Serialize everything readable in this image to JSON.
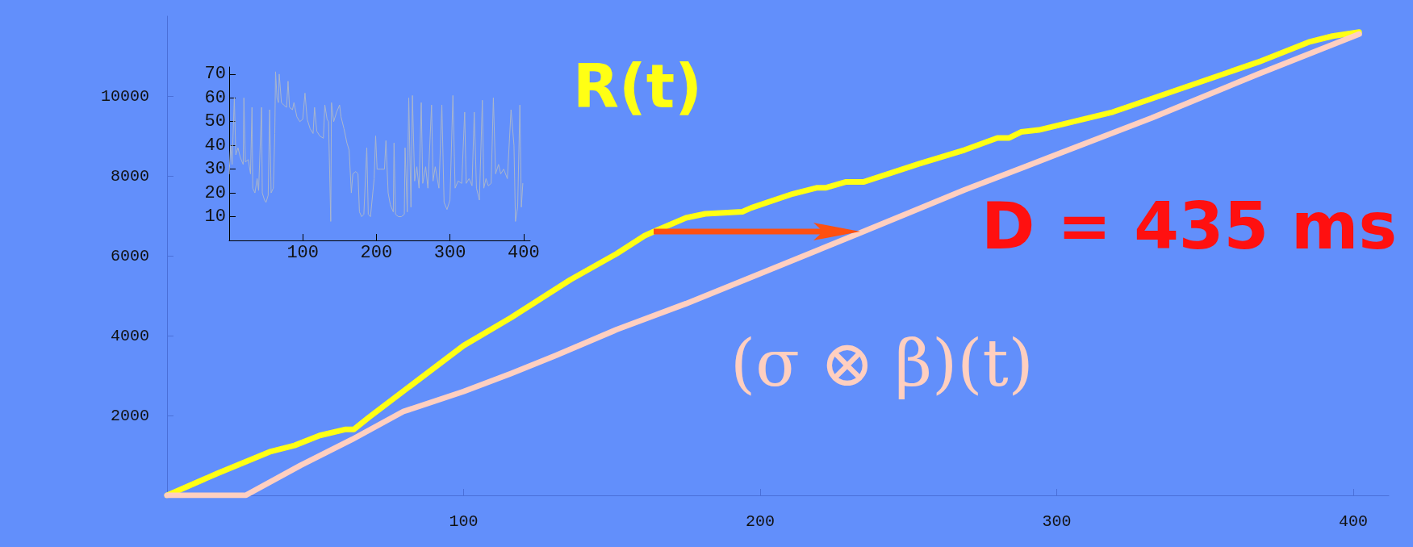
{
  "chart_data": [
    {
      "type": "line",
      "xlim": [
        0,
        412
      ],
      "xticks": [
        100,
        200,
        300,
        400
      ],
      "ylim": [
        0,
        12000
      ],
      "yticks": [
        2000,
        4000,
        6000,
        8000,
        10000
      ],
      "grid": false,
      "legend": false,
      "marker": "none",
      "line_style": "solid",
      "annotations": [
        "D = 435 ms"
      ],
      "series": [
        {
          "name": "R(t)",
          "color": "#ffff14",
          "x": [
            0,
            17,
            35,
            43,
            51.5,
            60,
            63,
            68,
            100,
            116,
            136,
            151.6,
            161,
            164,
            175,
            181.5,
            194,
            197,
            211,
            219,
            222,
            229,
            235,
            253.5,
            269,
            280,
            284,
            288,
            294,
            319,
            368,
            385,
            393,
            402
          ],
          "values": [
            0,
            550,
            1100,
            1250,
            1500,
            1650,
            1650,
            1950,
            3750,
            4450,
            5400,
            6050,
            6500,
            6600,
            6950,
            7050,
            7100,
            7200,
            7550,
            7700,
            7700,
            7850,
            7850,
            8300,
            8650,
            8950,
            8950,
            9100,
            9150,
            9600,
            10850,
            11350,
            11500,
            11600
          ]
        },
        {
          "name": "(σ ⊗ β)(t)",
          "color": "#ffcfc0",
          "x": [
            0,
            26.5,
            45,
            62.4,
            79.7,
            100,
            116,
            131,
            151.6,
            175,
            233,
            269,
            300.5,
            332,
            368,
            402
          ],
          "values": [
            0,
            0,
            750,
            1400,
            2100,
            2600,
            3050,
            3500,
            4150,
            4800,
            6550,
            7650,
            8550,
            9450,
            10550,
            11550
          ]
        }
      ]
    },
    {
      "type": "line",
      "xlim": [
        0,
        409
      ],
      "xticks": [
        100,
        200,
        300,
        400
      ],
      "ylim": [
        0,
        73
      ],
      "yticks": [
        10,
        20,
        30,
        40,
        50,
        60,
        70
      ],
      "grid": false,
      "legend": false,
      "marker": "none",
      "line_style": "solid",
      "series": [
        {
          "color": "#a9b6cc",
          "x": [
            0,
            2,
            4,
            7,
            9,
            12,
            15,
            19,
            20,
            22,
            26,
            29,
            31,
            32,
            35,
            38,
            40,
            44,
            45,
            48,
            50,
            53,
            55,
            57,
            60,
            62,
            63,
            65,
            67,
            68,
            71,
            74,
            78,
            80,
            82,
            86,
            88,
            92,
            96,
            100,
            103,
            106,
            110,
            114,
            116,
            119,
            123,
            128,
            130,
            133,
            135,
            138,
            139,
            142,
            146,
            150,
            152,
            156,
            160,
            163,
            166,
            168,
            172,
            175,
            177,
            180,
            183,
            187,
            189,
            192,
            197,
            199,
            201,
            206,
            211,
            213,
            216,
            219,
            223,
            224,
            226,
            230,
            234,
            238,
            239,
            242,
            244,
            247,
            249,
            252,
            255,
            258,
            261,
            263,
            267,
            270,
            275,
            277,
            280,
            285,
            289,
            292,
            296,
            300,
            304,
            307,
            311,
            316,
            320,
            322,
            326,
            330,
            333,
            336,
            340,
            344,
            346,
            349,
            352,
            356,
            359,
            362,
            366,
            369,
            373,
            378,
            383,
            387,
            389,
            392,
            395,
            397,
            399
          ],
          "values": [
            28,
            40,
            32,
            60,
            36,
            39,
            35,
            32,
            60,
            33,
            34,
            28,
            56,
            22,
            20,
            26,
            21,
            56,
            20,
            17,
            16,
            19,
            55,
            20,
            22,
            45,
            71,
            60,
            58,
            70,
            58,
            57,
            56,
            67,
            56,
            55,
            58,
            52,
            50,
            51,
            62,
            51,
            47,
            45,
            56,
            46,
            44,
            43,
            57,
            51,
            50,
            8,
            58,
            50,
            54,
            57,
            52,
            47,
            41,
            38,
            20,
            28,
            29,
            28,
            12,
            10,
            11,
            39,
            11,
            10,
            26,
            44,
            30,
            30,
            30,
            42,
            20,
            15,
            12,
            41,
            11,
            10,
            10,
            11,
            39,
            12,
            60,
            14,
            61,
            25,
            31,
            22,
            58,
            24,
            31,
            22,
            57,
            25,
            31,
            22,
            57,
            16,
            13,
            17,
            61,
            22,
            25,
            24,
            54,
            24,
            26,
            23,
            54,
            22,
            17,
            59,
            22,
            26,
            23,
            24,
            60,
            28,
            32,
            28,
            30,
            26,
            55,
            40,
            8,
            14,
            57,
            14,
            24
          ]
        }
      ]
    }
  ]
}
